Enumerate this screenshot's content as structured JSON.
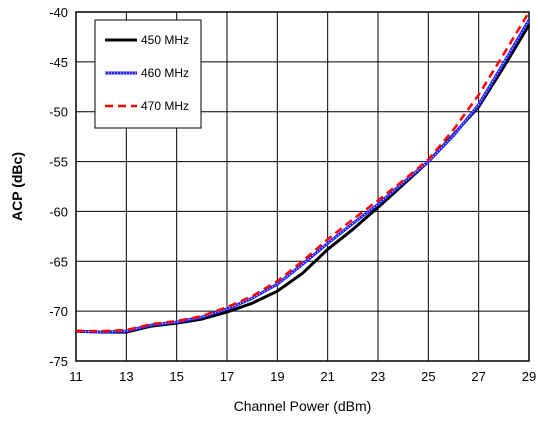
{
  "chart_data": {
    "type": "line",
    "title": "",
    "xlabel": "Channel Power (dBm)",
    "ylabel": "ACP (dBc)",
    "xlim": [
      11,
      29
    ],
    "ylim": [
      -75,
      -40
    ],
    "xticks": [
      11,
      13,
      15,
      17,
      19,
      21,
      23,
      25,
      27,
      29
    ],
    "yticks": [
      -40,
      -45,
      -50,
      -55,
      -60,
      -65,
      -70,
      -75
    ],
    "xtick_labels": [
      "11",
      "13",
      "15",
      "17",
      "19",
      "21",
      "23",
      "25",
      "27",
      "29"
    ],
    "ytick_labels": [
      "-40",
      "-45",
      "-50",
      "-55",
      "-60",
      "-65",
      "-70",
      "-75"
    ],
    "grid": true,
    "legend_position": "top-left",
    "series": [
      {
        "name": "450 MHz",
        "color": "#000000",
        "style": "solid",
        "x": [
          11,
          12,
          13,
          14,
          15,
          16,
          17,
          18,
          19,
          20,
          21,
          22,
          23,
          24,
          25,
          26,
          27,
          28,
          29
        ],
        "y": [
          -72,
          -72.1,
          -72.1,
          -71.5,
          -71.2,
          -70.8,
          -70.1,
          -69.2,
          -68,
          -66.2,
          -63.8,
          -61.8,
          -59.6,
          -57.3,
          -55,
          -52.3,
          -49.5,
          -45.5,
          -41.3
        ]
      },
      {
        "name": "460 MHz",
        "color": "#1f1fff",
        "style": "solid-dotted",
        "x": [
          11,
          12,
          13,
          14,
          15,
          16,
          17,
          18,
          19,
          20,
          21,
          22,
          23,
          24,
          25,
          26,
          27,
          28,
          29
        ],
        "y": [
          -72,
          -72.1,
          -72,
          -71.4,
          -71.1,
          -70.6,
          -69.8,
          -68.7,
          -67.3,
          -65.3,
          -63.2,
          -61.2,
          -59.3,
          -57.1,
          -55,
          -52.4,
          -49.3,
          -45.1,
          -40.8
        ]
      },
      {
        "name": "470 MHz",
        "color": "#ff0000",
        "style": "dashed",
        "x": [
          11,
          12,
          13,
          14,
          15,
          16,
          17,
          18,
          19,
          20,
          21,
          22,
          23,
          24,
          25,
          26,
          27,
          28,
          29
        ],
        "y": [
          -72,
          -72,
          -71.9,
          -71.3,
          -71,
          -70.5,
          -69.6,
          -68.5,
          -67,
          -65,
          -62.8,
          -60.8,
          -58.9,
          -56.9,
          -54.8,
          -51.8,
          -48.3,
          -44.2,
          -40
        ]
      }
    ]
  }
}
